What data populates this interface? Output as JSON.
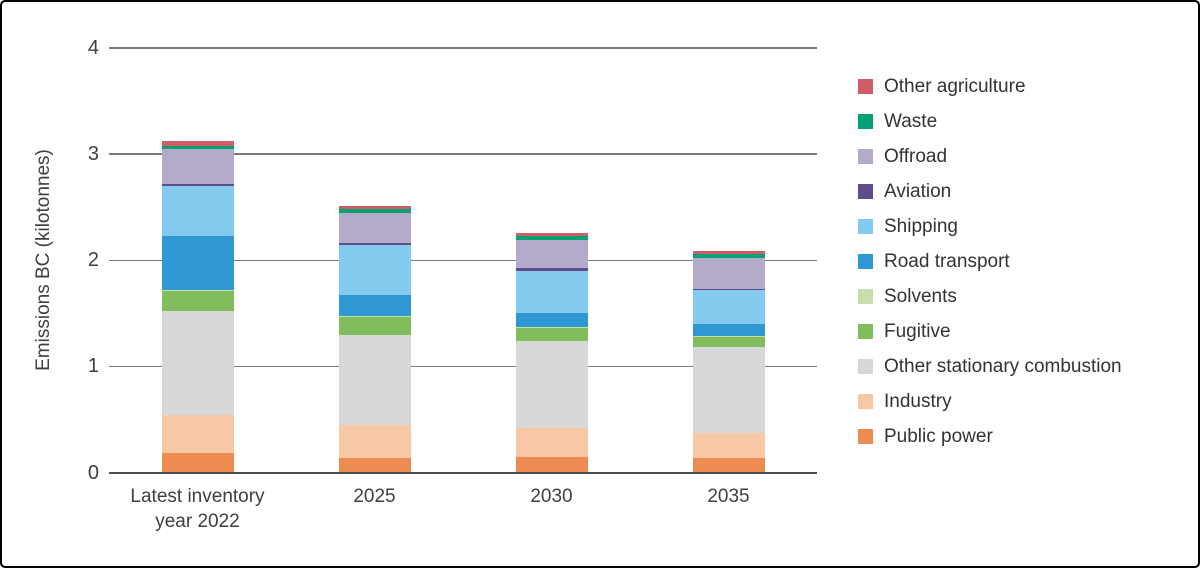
{
  "chart_data": {
    "type": "bar",
    "stacked": true,
    "title": "",
    "xlabel": "",
    "ylabel": "Emissions BC (kilotonnes)",
    "ylim": [
      0,
      4
    ],
    "yticks": [
      0,
      1,
      2,
      3,
      4
    ],
    "grid": "horizontal",
    "legend_position": "right",
    "categories": [
      "Latest inventory\nyear 2022",
      "2025",
      "2030",
      "2035"
    ],
    "series_bottom_to_top": [
      {
        "name": "Public power",
        "color": "#EC8C50",
        "values": [
          0.18,
          0.14,
          0.15,
          0.14
        ]
      },
      {
        "name": "Industry",
        "color": "#F7C8A6",
        "values": [
          0.36,
          0.31,
          0.27,
          0.23
        ]
      },
      {
        "name": "Other stationary combustion",
        "color": "#D8D8D8",
        "values": [
          0.98,
          0.85,
          0.82,
          0.81
        ]
      },
      {
        "name": "Fugitive",
        "color": "#82BD5D",
        "values": [
          0.19,
          0.17,
          0.13,
          0.1
        ]
      },
      {
        "name": "Solvents",
        "color": "#C7DFAD",
        "values": [
          0.005,
          0.005,
          0.005,
          0.005
        ]
      },
      {
        "name": "Road transport",
        "color": "#2E97D4",
        "values": [
          0.51,
          0.2,
          0.125,
          0.11
        ]
      },
      {
        "name": "Shipping",
        "color": "#85CBEF",
        "values": [
          0.47,
          0.47,
          0.4,
          0.32
        ]
      },
      {
        "name": "Aviation",
        "color": "#5E4D8D",
        "values": [
          0.02,
          0.02,
          0.025,
          0.015
        ]
      },
      {
        "name": "Offroad",
        "color": "#B4ABCA",
        "values": [
          0.33,
          0.28,
          0.27,
          0.29
        ]
      },
      {
        "name": "Waste",
        "color": "#04A173",
        "values": [
          0.035,
          0.035,
          0.035,
          0.035
        ]
      },
      {
        "name": "Other agriculture",
        "color": "#D05E69",
        "values": [
          0.04,
          0.035,
          0.03,
          0.03
        ]
      }
    ],
    "totals": [
      3.12,
      2.51,
      2.26,
      2.09
    ],
    "legend_order_top_to_bottom": [
      "Other agriculture",
      "Waste",
      "Offroad",
      "Aviation",
      "Shipping",
      "Road transport",
      "Solvents",
      "Fugitive",
      "Other stationary combustion",
      "Industry",
      "Public power"
    ]
  }
}
